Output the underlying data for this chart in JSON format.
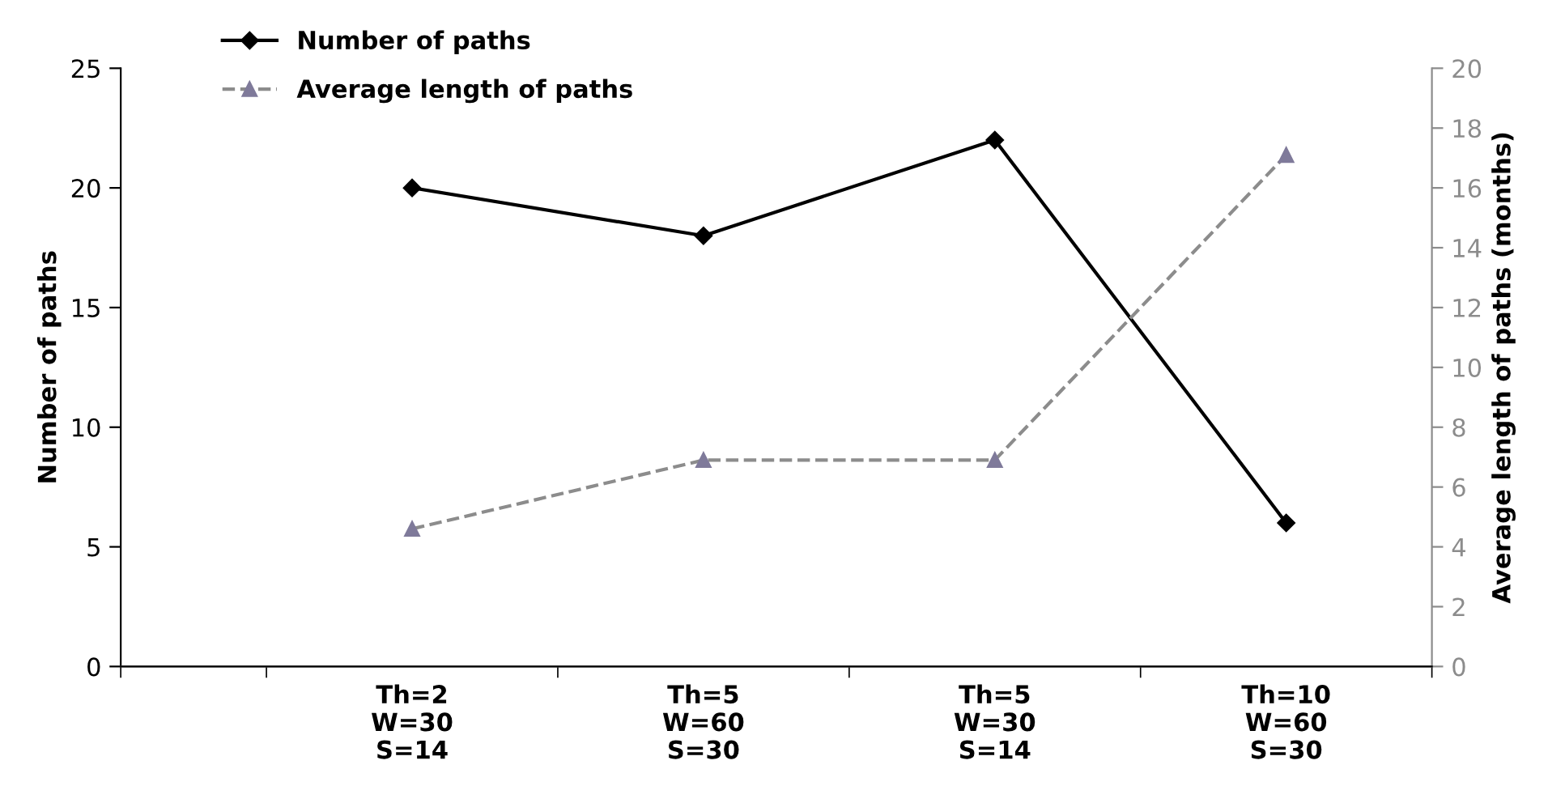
{
  "chart_data": {
    "type": "line",
    "ylabel": "Number of paths",
    "y2label": "Average length of paths (months)",
    "categories": [
      "Th=2\nW=30\nS=14",
      "Th=5\nW=60\nS=30",
      "Th=5\nW=30\nS=14",
      "Th=10\nW=60\nS=30"
    ],
    "series": [
      {
        "name": "Number of paths",
        "color": "#000000",
        "values": [
          20,
          18,
          22,
          6
        ],
        "marker": "diamond",
        "line_style": "solid"
      },
      {
        "name": "Average length of paths",
        "color": "#8c8c8c",
        "values": [
          4.6,
          6.9,
          6.9,
          17.1
        ],
        "marker": "triangle",
        "line_style": "dashed",
        "axis": "y2"
      }
    ],
    "ylim": [
      0,
      25
    ],
    "yticks": [
      0,
      5,
      10,
      15,
      20,
      25
    ],
    "y2lim": [
      0,
      20
    ],
    "y2ticks": [
      0,
      2,
      4,
      6,
      8,
      10,
      12,
      14,
      16,
      18,
      20
    ],
    "grid": false,
    "legend": "top left"
  }
}
